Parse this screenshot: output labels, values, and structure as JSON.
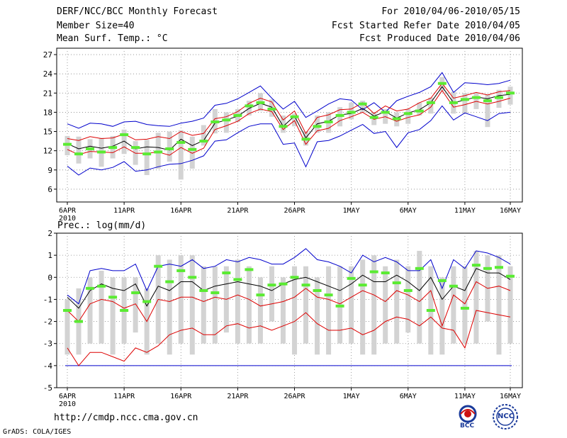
{
  "header": {
    "title": "DERF/NCC/BCC Monthly Forecast",
    "member_size": "Member Size=40",
    "variable": "Mean Surf. Temp.: °C",
    "period": "For 2010/04/06-2010/05/15",
    "refer_date": "Fcst Started Refer Date 2010/04/05",
    "produced_date": "Fcst Produced Date 2010/04/06"
  },
  "footer": {
    "url": "http://cmdp.ncc.cma.gov.cn",
    "credit": "GrADS: COLA/IGES",
    "logo_bcc": "BCC",
    "logo_ncc": "NCC"
  },
  "colors": {
    "box": "#d3d3d3",
    "obs": "#5aeb32",
    "envelope": "#0000cc",
    "spread": "#dd0000",
    "mean": "#000000",
    "grid": "#888888"
  },
  "chart_data": [
    {
      "type": "line",
      "title": "Mean Surf. Temp.: °C",
      "xlabel": "",
      "ylabel": "°C",
      "ylim": [
        4,
        28
      ],
      "yticks": [
        6,
        9,
        12,
        15,
        18,
        21,
        24,
        27
      ],
      "grid": true,
      "x": [
        1,
        2,
        3,
        4,
        5,
        6,
        7,
        8,
        9,
        10,
        11,
        12,
        13,
        14,
        15,
        16,
        17,
        18,
        19,
        20,
        21,
        22,
        23,
        24,
        25,
        26,
        27,
        28,
        29,
        30,
        31,
        32,
        33,
        34,
        35,
        36,
        37,
        38,
        39,
        40
      ],
      "xtick_labels": [
        {
          "day": 1,
          "label": "6APR",
          "sublabel": "2010"
        },
        {
          "day": 6,
          "label": "11APR"
        },
        {
          "day": 11,
          "label": "16APR"
        },
        {
          "day": 16,
          "label": "21APR"
        },
        {
          "day": 21,
          "label": "26APR"
        },
        {
          "day": 26,
          "label": "1MAY"
        },
        {
          "day": 31,
          "label": "6MAY"
        },
        {
          "day": 36,
          "label": "11MAY"
        },
        {
          "day": 40,
          "label": "16MAY"
        }
      ],
      "series": [
        {
          "name": "Ensemble max",
          "color": "#0000cc",
          "values": [
            16.2,
            15.5,
            16.3,
            16.2,
            15.8,
            16.5,
            16.6,
            16.1,
            15.9,
            15.8,
            16.3,
            16.6,
            17.1,
            19.1,
            19.4,
            20.1,
            21.1,
            22.1,
            20.2,
            18.5,
            19.7,
            17.2,
            18.2,
            19.3,
            20.1,
            19.9,
            18.4,
            19.5,
            18.0,
            19.8,
            20.5,
            21.1,
            22.0,
            24.2,
            21.1,
            22.6,
            22.5,
            22.3,
            22.5,
            23.0
          ]
        },
        {
          "name": "Ensemble upper",
          "color": "#dd0000",
          "values": [
            13.9,
            13.6,
            14.2,
            13.9,
            14.0,
            14.6,
            13.7,
            13.8,
            14.2,
            13.9,
            15.0,
            14.4,
            14.7,
            17.0,
            17.3,
            18.1,
            19.4,
            20.2,
            19.6,
            16.8,
            18.2,
            14.7,
            17.2,
            17.6,
            18.4,
            18.5,
            19.5,
            17.8,
            19.0,
            18.2,
            18.5,
            19.5,
            20.2,
            22.5,
            20.2,
            20.6,
            21.1,
            20.7,
            21.2,
            21.4
          ]
        },
        {
          "name": "Ensemble mean",
          "color": "#000000",
          "values": [
            13.1,
            12.3,
            12.7,
            12.4,
            12.7,
            13.5,
            12.3,
            12.6,
            12.5,
            12.1,
            13.8,
            12.8,
            13.6,
            16.3,
            16.8,
            17.4,
            18.6,
            19.4,
            18.8,
            15.8,
            17.4,
            14.0,
            16.2,
            16.6,
            17.6,
            17.8,
            18.6,
            17.4,
            18.1,
            17.1,
            17.9,
            18.4,
            19.5,
            22.0,
            19.5,
            19.9,
            20.4,
            20.1,
            20.6,
            20.8
          ]
        },
        {
          "name": "Ensemble lower",
          "color": "#dd0000",
          "values": [
            12.2,
            11.4,
            11.9,
            11.8,
            11.7,
            12.6,
            11.6,
            11.6,
            11.8,
            11.3,
            12.5,
            11.6,
            12.4,
            15.3,
            15.9,
            16.6,
            17.8,
            18.5,
            18.1,
            15.3,
            16.7,
            13.0,
            15.1,
            15.5,
            16.7,
            17.3,
            18.0,
            16.9,
            17.3,
            16.6,
            17.2,
            17.6,
            18.8,
            21.4,
            18.8,
            19.2,
            19.7,
            19.3,
            19.7,
            20.2
          ]
        },
        {
          "name": "Ensemble min",
          "color": "#0000cc",
          "values": [
            9.6,
            8.2,
            9.3,
            9.0,
            9.4,
            10.3,
            8.8,
            9.0,
            9.5,
            9.9,
            10.0,
            10.5,
            11.2,
            13.5,
            13.7,
            14.8,
            15.8,
            16.2,
            16.2,
            13.0,
            13.2,
            9.5,
            13.4,
            13.6,
            14.3,
            15.2,
            16.1,
            14.7,
            15.0,
            12.5,
            14.8,
            15.3,
            16.7,
            19.0,
            16.8,
            17.9,
            17.3,
            16.7,
            17.8,
            18.0
          ]
        },
        {
          "name": "Observation",
          "color": "#5aeb32",
          "values": [
            13.0,
            11.5,
            12.3,
            11.8,
            12.5,
            14.5,
            12.5,
            11.5,
            11.8,
            12.3,
            13.3,
            12.2,
            13.5,
            16.5,
            16.8,
            17.5,
            19.0,
            19.5,
            18.5,
            15.8,
            17.3,
            13.8,
            15.8,
            16.5,
            17.5,
            18.0,
            19.3,
            17.2,
            18.0,
            17.0,
            17.8,
            18.2,
            19.5,
            22.5,
            19.5,
            20.0,
            20.3,
            19.8,
            20.3,
            21.0
          ]
        }
      ],
      "box_low": [
        11.3,
        10.0,
        10.8,
        9.5,
        10.8,
        11.5,
        9.8,
        8.2,
        9.2,
        10.3,
        7.5,
        9.2,
        12.8,
        14.7,
        14.8,
        16.5,
        17.5,
        18.2,
        17.3,
        14.8,
        15.8,
        12.8,
        14.8,
        14.8,
        15.8,
        16.9,
        18.0,
        16.0,
        16.2,
        15.8,
        16.2,
        17.5,
        17.8,
        21.3,
        17.8,
        17.8,
        18.5,
        15.7,
        18.7,
        19.2
      ],
      "box_high": [
        14.3,
        14.2,
        13.8,
        14.0,
        14.3,
        15.3,
        13.5,
        13.7,
        14.8,
        15.0,
        15.2,
        14.2,
        16.0,
        18.5,
        18.0,
        18.5,
        19.8,
        21.0,
        20.0,
        17.5,
        17.8,
        15.0,
        17.5,
        18.0,
        18.8,
        19.5,
        19.8,
        18.0,
        18.5,
        18.0,
        18.5,
        19.5,
        20.3,
        23.5,
        21.2,
        21.0,
        21.0,
        20.8,
        21.5,
        22.0
      ]
    },
    {
      "type": "line",
      "title": "Prec.: log(mm/d)",
      "xlabel": "",
      "ylabel": "log(mm/d)",
      "ylim": [
        -5,
        2
      ],
      "yticks": [
        -5,
        -4,
        -3,
        -2,
        -1,
        0,
        1,
        2
      ],
      "grid": true,
      "x": [
        1,
        2,
        3,
        4,
        5,
        6,
        7,
        8,
        9,
        10,
        11,
        12,
        13,
        14,
        15,
        16,
        17,
        18,
        19,
        20,
        21,
        22,
        23,
        24,
        25,
        26,
        27,
        28,
        29,
        30,
        31,
        32,
        33,
        34,
        35,
        36,
        37,
        38,
        39,
        40
      ],
      "xtick_labels": [
        {
          "day": 1,
          "label": "6APR",
          "sublabel": "2010"
        },
        {
          "day": 6,
          "label": "11APR"
        },
        {
          "day": 11,
          "label": "16APR"
        },
        {
          "day": 16,
          "label": "21APR"
        },
        {
          "day": 21,
          "label": "26APR"
        },
        {
          "day": 26,
          "label": "1MAY"
        },
        {
          "day": 31,
          "label": "6MAY"
        },
        {
          "day": 36,
          "label": "11MAY"
        },
        {
          "day": 40,
          "label": "16MAY"
        }
      ],
      "series": [
        {
          "name": "Ensemble max",
          "color": "#0000cc",
          "values": [
            -0.8,
            -1.2,
            0.3,
            0.4,
            0.3,
            0.3,
            0.6,
            -0.6,
            0.5,
            0.6,
            0.5,
            0.8,
            0.4,
            0.5,
            0.8,
            0.7,
            0.9,
            0.8,
            0.6,
            0.6,
            0.9,
            1.3,
            0.8,
            0.7,
            0.5,
            0.2,
            1.0,
            0.7,
            0.9,
            0.7,
            0.3,
            0.3,
            0.8,
            -0.5,
            0.8,
            0.4,
            1.2,
            1.1,
            0.9,
            0.6
          ]
        },
        {
          "name": "Ensemble mean",
          "color": "#000000",
          "values": [
            -0.9,
            -1.4,
            -0.6,
            -0.3,
            -0.5,
            -0.6,
            -0.3,
            -1.3,
            -0.4,
            -0.6,
            -0.2,
            -0.2,
            -0.6,
            -0.4,
            -0.3,
            -0.2,
            -0.3,
            -0.4,
            -0.6,
            -0.3,
            -0.1,
            0.0,
            -0.2,
            -0.4,
            -0.6,
            -0.3,
            0.1,
            -0.2,
            -0.2,
            0.1,
            -0.2,
            -0.6,
            0.0,
            -1.0,
            -0.4,
            -0.6,
            0.4,
            0.2,
            0.2,
            -0.1
          ]
        },
        {
          "name": "Ensemble upper",
          "color": "#dd0000",
          "values": [
            -1.5,
            -2.0,
            -1.2,
            -1.0,
            -1.1,
            -1.4,
            -1.2,
            -2.0,
            -1.0,
            -1.1,
            -0.9,
            -0.9,
            -1.1,
            -0.9,
            -1.0,
            -0.8,
            -1.0,
            -1.3,
            -1.2,
            -1.1,
            -0.9,
            -0.5,
            -0.9,
            -1.0,
            -1.2,
            -0.9,
            -0.6,
            -0.8,
            -1.1,
            -0.6,
            -0.8,
            -1.1,
            -0.6,
            -2.2,
            -0.8,
            -1.2,
            -0.2,
            -0.5,
            -0.4,
            -0.6
          ]
        },
        {
          "name": "Ensemble min",
          "color": "#dd0000",
          "values": [
            -3.2,
            -4.0,
            -3.4,
            -3.4,
            -3.6,
            -3.8,
            -3.2,
            -3.4,
            -3.1,
            -2.6,
            -2.4,
            -2.3,
            -2.6,
            -2.6,
            -2.2,
            -2.1,
            -2.3,
            -2.2,
            -2.4,
            -2.2,
            -2.0,
            -1.6,
            -2.1,
            -2.4,
            -2.4,
            -2.3,
            -2.6,
            -2.4,
            -2.0,
            -1.8,
            -1.9,
            -2.2,
            -1.8,
            -2.3,
            -2.4,
            -3.2,
            -1.5,
            -1.6,
            -1.7,
            -1.8
          ]
        },
        {
          "name": "Observation",
          "color": "#5aeb32",
          "values": [
            -1.5,
            -2.0,
            -0.5,
            -0.4,
            -0.9,
            -1.5,
            -0.7,
            -1.1,
            0.5,
            -0.2,
            0.3,
            0.0,
            -0.6,
            -0.7,
            0.2,
            -0.1,
            0.35,
            -0.8,
            -0.35,
            -0.3,
            0.0,
            -0.35,
            -0.6,
            -0.8,
            -1.3,
            -0.05,
            -0.35,
            0.25,
            0.2,
            -0.25,
            -0.6,
            0.4,
            -1.5,
            -0.15,
            -0.4,
            -1.4,
            0.55,
            0.4,
            0.45,
            0.05
          ]
        }
      ],
      "box_low": [
        -3.5,
        -3.5,
        -3.0,
        -3.0,
        -3.5,
        -3.0,
        -2.5,
        -3.5,
        -3.0,
        -3.5,
        -3.0,
        -3.5,
        -3.0,
        -3.0,
        -2.5,
        -3.0,
        -3.0,
        -3.0,
        -2.0,
        -3.0,
        -3.5,
        -3.0,
        -3.5,
        -3.5,
        -3.0,
        -3.0,
        -3.5,
        -3.5,
        -3.0,
        -3.0,
        -2.5,
        -3.0,
        -3.5,
        -3.5,
        -3.0,
        -3.0,
        -3.0,
        -2.0,
        -3.5,
        -3.0
      ],
      "box_high": [
        -1.0,
        -0.5,
        0.0,
        0.3,
        0.0,
        0.0,
        0.0,
        -0.5,
        1.0,
        0.8,
        1.0,
        1.0,
        0.5,
        0.5,
        0.5,
        0.8,
        0.5,
        0.0,
        0.5,
        0.0,
        0.5,
        0.5,
        0.0,
        0.5,
        0.5,
        0.5,
        0.8,
        1.0,
        0.5,
        0.8,
        0.5,
        1.2,
        0.5,
        0.0,
        0.5,
        0.5,
        1.2,
        1.0,
        1.0,
        0.5
      ],
      "reference_line": {
        "value": -4,
        "color": "#0000cc"
      }
    }
  ]
}
